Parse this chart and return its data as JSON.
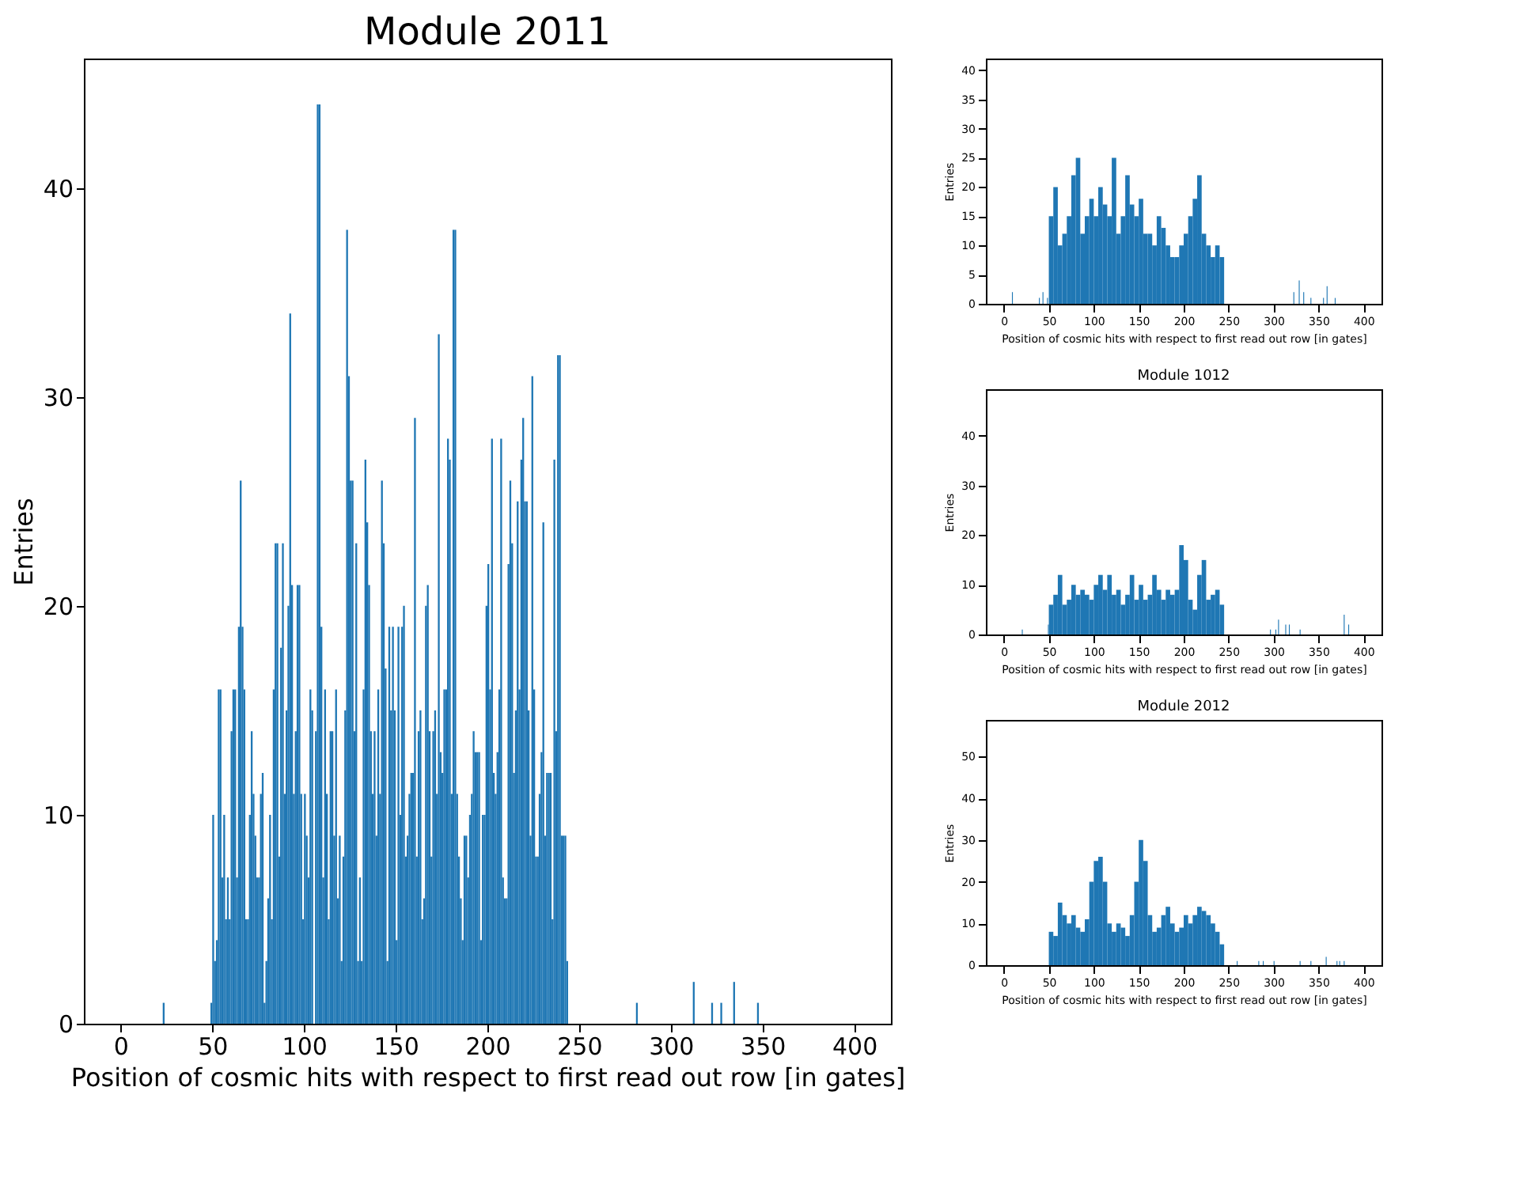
{
  "chart_data": [
    {
      "type": "histogram",
      "title": "Module 2011",
      "xlabel": "Position of cosmic hits with respect to first read out row [in gates]",
      "ylabel": "Entries",
      "color": "#1f77b4",
      "xlim": [
        -20,
        420
      ],
      "ylim": [
        0,
        46.2
      ],
      "xticks": [
        0,
        50,
        100,
        150,
        200,
        250,
        300,
        350,
        400
      ],
      "yticks": [
        0,
        10,
        20,
        30,
        40
      ],
      "bins": [
        23,
        24,
        49,
        50,
        51,
        52,
        53,
        54,
        55,
        56,
        57,
        58,
        59,
        60,
        61,
        62,
        63,
        64,
        65,
        66,
        67,
        68,
        69,
        70,
        71,
        72,
        73,
        74,
        75,
        76,
        77,
        78,
        79,
        80,
        81,
        82,
        83,
        84,
        85,
        86,
        87,
        88,
        89,
        90,
        91,
        92,
        93,
        94,
        95,
        96,
        97,
        98,
        99,
        100,
        101,
        102,
        103,
        104,
        105,
        106,
        107,
        108,
        109,
        110,
        111,
        112,
        113,
        114,
        115,
        116,
        117,
        118,
        119,
        120,
        121,
        122,
        123,
        124,
        125,
        126,
        127,
        128,
        129,
        130,
        131,
        132,
        133,
        134,
        135,
        136,
        137,
        138,
        139,
        140,
        141,
        142,
        143,
        144,
        145,
        146,
        147,
        148,
        149,
        150,
        151,
        152,
        153,
        154,
        155,
        156,
        157,
        158,
        159,
        160,
        161,
        162,
        163,
        164,
        165,
        166,
        167,
        168,
        169,
        170,
        171,
        172,
        173,
        174,
        175,
        176,
        177,
        178,
        179,
        180,
        181,
        182,
        183,
        184,
        185,
        186,
        187,
        188,
        189,
        190,
        191,
        192,
        193,
        194,
        195,
        196,
        197,
        198,
        199,
        200,
        201,
        202,
        203,
        204,
        205,
        206,
        207,
        208,
        209,
        210,
        211,
        212,
        213,
        214,
        215,
        216,
        217,
        218,
        219,
        220,
        221,
        222,
        223,
        224,
        225,
        226,
        227,
        228,
        229,
        230,
        231,
        232,
        233,
        234,
        235,
        236,
        237,
        238,
        239,
        240,
        241,
        242,
        243,
        244,
        281,
        282,
        312,
        313,
        322,
        323,
        327,
        328,
        334,
        335,
        347,
        348
      ],
      "values": [
        1,
        0,
        1,
        10,
        3,
        4,
        16,
        16,
        7,
        10,
        5,
        7,
        5,
        14,
        16,
        16,
        7,
        19,
        26,
        19,
        16,
        5,
        5,
        10,
        14,
        11,
        9,
        7,
        7,
        11,
        12,
        1,
        3,
        6,
        10,
        5,
        16,
        23,
        23,
        8,
        18,
        23,
        11,
        15,
        20,
        34,
        21,
        11,
        14,
        21,
        21,
        11,
        5,
        11,
        9,
        7,
        16,
        15,
        0,
        14,
        44,
        44,
        19,
        7,
        16,
        11,
        5,
        14,
        14,
        9,
        16,
        6,
        9,
        3,
        8,
        15,
        38,
        31,
        26,
        26,
        14,
        23,
        3,
        7,
        3,
        16,
        27,
        24,
        21,
        14,
        11,
        14,
        9,
        16,
        11,
        26,
        23,
        17,
        3,
        19,
        15,
        19,
        15,
        4,
        19,
        10,
        19,
        20,
        8,
        9,
        11,
        12,
        12,
        29,
        8,
        14,
        15,
        5,
        6,
        20,
        21,
        14,
        8,
        14,
        15,
        11,
        33,
        13,
        12,
        16,
        16,
        28,
        27,
        11,
        38,
        38,
        11,
        8,
        6,
        4,
        9,
        9,
        7,
        10,
        11,
        14,
        13,
        13,
        13,
        4,
        10,
        10,
        20,
        22,
        16,
        28,
        12,
        11,
        13,
        16,
        28,
        7,
        6,
        6,
        22,
        26,
        23,
        12,
        15,
        25,
        16,
        27,
        29,
        25,
        25,
        15,
        9,
        31,
        16,
        8,
        8,
        11,
        13,
        24,
        9,
        12,
        12,
        12,
        5,
        27,
        14,
        32,
        32,
        9,
        9,
        9,
        3,
        0,
        1,
        0,
        2,
        0,
        1,
        0,
        1,
        0,
        2,
        0,
        1
      ]
    },
    {
      "type": "histogram",
      "xlabel": "Position of cosmic hits with respect to first read out row [in gates]",
      "ylabel": "Entries",
      "color": "#1f77b4",
      "xlim": [
        -20,
        420
      ],
      "ylim": [
        0,
        42
      ],
      "xticks": [
        0,
        50,
        100,
        150,
        200,
        250,
        300,
        350,
        400
      ],
      "yticks": [
        0,
        5,
        10,
        15,
        20,
        25,
        30,
        35,
        40
      ],
      "bins": [
        9,
        10,
        39,
        40,
        43,
        44,
        48,
        49,
        50,
        55,
        60,
        65,
        70,
        75,
        80,
        85,
        90,
        95,
        100,
        105,
        110,
        115,
        120,
        125,
        130,
        135,
        140,
        145,
        150,
        155,
        160,
        165,
        170,
        175,
        180,
        185,
        190,
        195,
        200,
        205,
        210,
        215,
        220,
        225,
        230,
        235,
        240,
        245,
        322,
        323,
        328,
        329,
        333,
        334,
        341,
        342,
        355,
        356,
        359,
        360,
        368,
        369
      ],
      "values": [
        2,
        0,
        1,
        0,
        2,
        0,
        1,
        0,
        15,
        20,
        10,
        12,
        15,
        22,
        25,
        12,
        15,
        18,
        15,
        20,
        17,
        15,
        25,
        12,
        15,
        22,
        17,
        15,
        18,
        12,
        12,
        10,
        15,
        13,
        10,
        8,
        8,
        10,
        12,
        15,
        18,
        22,
        12,
        10,
        8,
        10,
        8,
        0,
        2,
        0,
        4,
        0,
        2,
        0,
        1,
        0,
        1,
        0,
        3,
        0,
        1
      ]
    },
    {
      "type": "histogram",
      "title": "Module 1012",
      "xlabel": "Position of cosmic hits with respect to first read out row [in gates]",
      "ylabel": "Entries",
      "color": "#1f77b4",
      "xlim": [
        -20,
        420
      ],
      "ylim": [
        0,
        49.4
      ],
      "xticks": [
        0,
        50,
        100,
        150,
        200,
        250,
        300,
        350,
        400
      ],
      "yticks": [
        0,
        10,
        20,
        30,
        40
      ],
      "bins": [
        20,
        21,
        49,
        50,
        55,
        60,
        65,
        70,
        75,
        80,
        85,
        90,
        95,
        100,
        105,
        110,
        115,
        120,
        125,
        130,
        135,
        140,
        145,
        150,
        155,
        160,
        165,
        170,
        175,
        180,
        185,
        190,
        195,
        200,
        205,
        210,
        215,
        220,
        225,
        230,
        235,
        240,
        245,
        296,
        297,
        302,
        303,
        305,
        306,
        313,
        314,
        317,
        318,
        329,
        330,
        378,
        379,
        383,
        384
      ],
      "values": [
        1,
        0,
        2,
        6,
        8,
        12,
        6,
        7,
        10,
        8,
        9,
        8,
        7,
        10,
        12,
        9,
        12,
        8,
        9,
        6,
        8,
        12,
        7,
        10,
        7,
        8,
        12,
        9,
        7,
        9,
        8,
        9,
        18,
        15,
        7,
        5,
        12,
        15,
        7,
        8,
        9,
        6,
        0,
        1,
        0,
        1,
        0,
        3,
        0,
        2,
        0,
        2,
        0,
        1,
        0,
        4,
        0,
        2
      ]
    },
    {
      "type": "histogram",
      "title": "Module 2012",
      "xlabel": "Position of cosmic hits with respect to first read out row [in gates]",
      "ylabel": "Entries",
      "color": "#1f77b4",
      "xlim": [
        -20,
        420
      ],
      "ylim": [
        0,
        58.8
      ],
      "xticks": [
        0,
        50,
        100,
        150,
        200,
        250,
        300,
        350,
        400
      ],
      "yticks": [
        0,
        10,
        20,
        30,
        40,
        50
      ],
      "bins": [
        50,
        55,
        60,
        65,
        70,
        75,
        80,
        85,
        90,
        95,
        100,
        105,
        110,
        115,
        120,
        125,
        130,
        135,
        140,
        145,
        150,
        155,
        160,
        165,
        170,
        175,
        180,
        185,
        190,
        195,
        200,
        205,
        210,
        215,
        220,
        225,
        230,
        235,
        240,
        245,
        259,
        260,
        283,
        284,
        288,
        289,
        300,
        301,
        329,
        330,
        341,
        342,
        358,
        359,
        370,
        371,
        373,
        374,
        378,
        379
      ],
      "values": [
        8,
        7,
        15,
        12,
        10,
        12,
        9,
        8,
        11,
        20,
        25,
        26,
        20,
        10,
        8,
        10,
        9,
        7,
        12,
        20,
        30,
        25,
        12,
        8,
        9,
        12,
        14,
        10,
        8,
        9,
        12,
        10,
        12,
        14,
        13,
        12,
        10,
        8,
        5,
        0,
        1,
        0,
        1,
        0,
        1,
        0,
        1,
        0,
        1,
        0,
        1,
        0,
        2,
        0,
        1,
        0,
        1,
        0,
        1
      ]
    }
  ]
}
